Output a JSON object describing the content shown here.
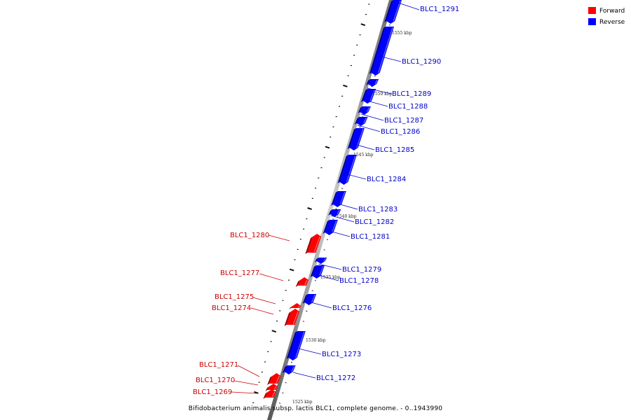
{
  "colors": {
    "forward": "#ff0000",
    "reverse": "#0000ff",
    "forward_label": "#cc0000",
    "reverse_label": "#0000cc",
    "backbone": "#888888"
  },
  "legend": {
    "forward": "Forward",
    "reverse": "Reverse"
  },
  "caption": "Bifidobacterium animalis subsp. lactis BLC1, complete genome. - 0..1943990",
  "ticks": [
    "1555 kbp",
    "1550 kbp",
    "1545 kbp",
    "1540 kbp",
    "1535 kbp",
    "1530 kbp",
    "1525 kbp"
  ],
  "genes": [
    {
      "name": "BLC1_1291",
      "strand": "reverse"
    },
    {
      "name": "BLC1_1290",
      "strand": "reverse"
    },
    {
      "name": "BLC1_1289",
      "strand": "reverse"
    },
    {
      "name": "BLC1_1288",
      "strand": "reverse"
    },
    {
      "name": "BLC1_1287",
      "strand": "reverse"
    },
    {
      "name": "BLC1_1286",
      "strand": "reverse"
    },
    {
      "name": "BLC1_1285",
      "strand": "reverse"
    },
    {
      "name": "BLC1_1284",
      "strand": "reverse"
    },
    {
      "name": "BLC1_1283",
      "strand": "reverse"
    },
    {
      "name": "BLC1_1282",
      "strand": "reverse"
    },
    {
      "name": "BLC1_1281",
      "strand": "reverse"
    },
    {
      "name": "BLC1_1280",
      "strand": "forward"
    },
    {
      "name": "BLC1_1279",
      "strand": "reverse"
    },
    {
      "name": "BLC1_1278",
      "strand": "reverse"
    },
    {
      "name": "BLC1_1277",
      "strand": "forward"
    },
    {
      "name": "BLC1_1276",
      "strand": "reverse"
    },
    {
      "name": "BLC1_1275",
      "strand": "forward"
    },
    {
      "name": "BLC1_1274",
      "strand": "forward"
    },
    {
      "name": "BLC1_1273",
      "strand": "reverse"
    },
    {
      "name": "BLC1_1272",
      "strand": "reverse"
    },
    {
      "name": "BLC1_1271",
      "strand": "forward"
    },
    {
      "name": "BLC1_1270",
      "strand": "forward"
    },
    {
      "name": "BLC1_1269",
      "strand": "forward"
    }
  ]
}
